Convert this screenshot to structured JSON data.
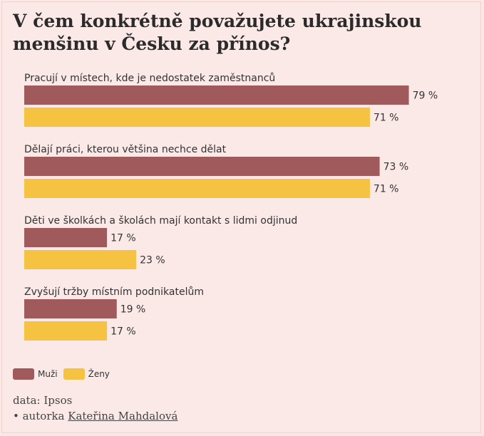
{
  "title": "V čem konkrétně považujete ukrajinskou menšinu v Česku za přínos?",
  "legend": {
    "men": "Muži",
    "women": "Ženy"
  },
  "colors": {
    "men": "#a05a5c",
    "women": "#f5c242",
    "background": "#fbe9e7"
  },
  "footer": {
    "source": "data: Ipsos",
    "author_prefix": "• autorka ",
    "author_name": "Kateřina Mahdalová"
  },
  "chart_data": {
    "type": "bar",
    "orientation": "horizontal",
    "categories": [
      "Pracují v místech, kde je nedostatek zaměstnanců",
      "Dělají práci, kterou většina nechce dělat",
      "Děti ve školkách a školách mají kontakt s lidmi odjinud",
      "Zvyšují tržby místním podnikatelům"
    ],
    "series": [
      {
        "name": "Muži",
        "values": [
          79,
          73,
          17,
          19
        ]
      },
      {
        "name": "Ženy",
        "values": [
          71,
          71,
          23,
          17
        ]
      }
    ],
    "unit": "%",
    "xlim": [
      0,
      100
    ],
    "grid": false,
    "legend_position": "bottom-left"
  }
}
